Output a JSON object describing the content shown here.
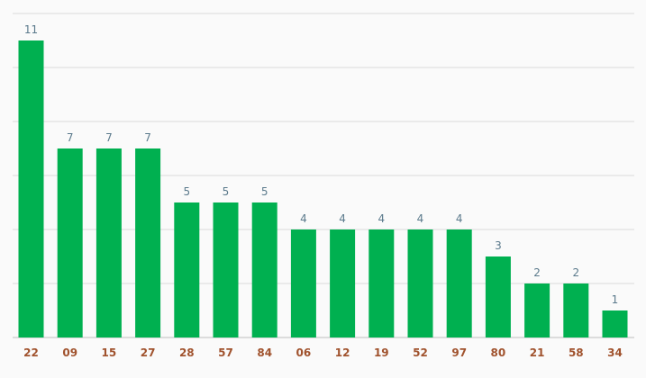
{
  "chart_data": {
    "type": "bar",
    "categories": [
      "22",
      "09",
      "15",
      "27",
      "28",
      "57",
      "84",
      "06",
      "12",
      "19",
      "52",
      "97",
      "80",
      "21",
      "58",
      "34"
    ],
    "values": [
      11,
      7,
      7,
      7,
      5,
      5,
      5,
      4,
      4,
      4,
      4,
      4,
      3,
      2,
      2,
      1
    ],
    "title": "",
    "xlabel": "",
    "ylabel": "",
    "ylim": [
      0,
      12
    ],
    "grid": true,
    "colors": {
      "bar": "#00b050",
      "value_label": "#5b7a8c",
      "tick_label": "#a0522d",
      "grid": "#d9d9d9",
      "baseline": "#bdbdbd"
    }
  }
}
